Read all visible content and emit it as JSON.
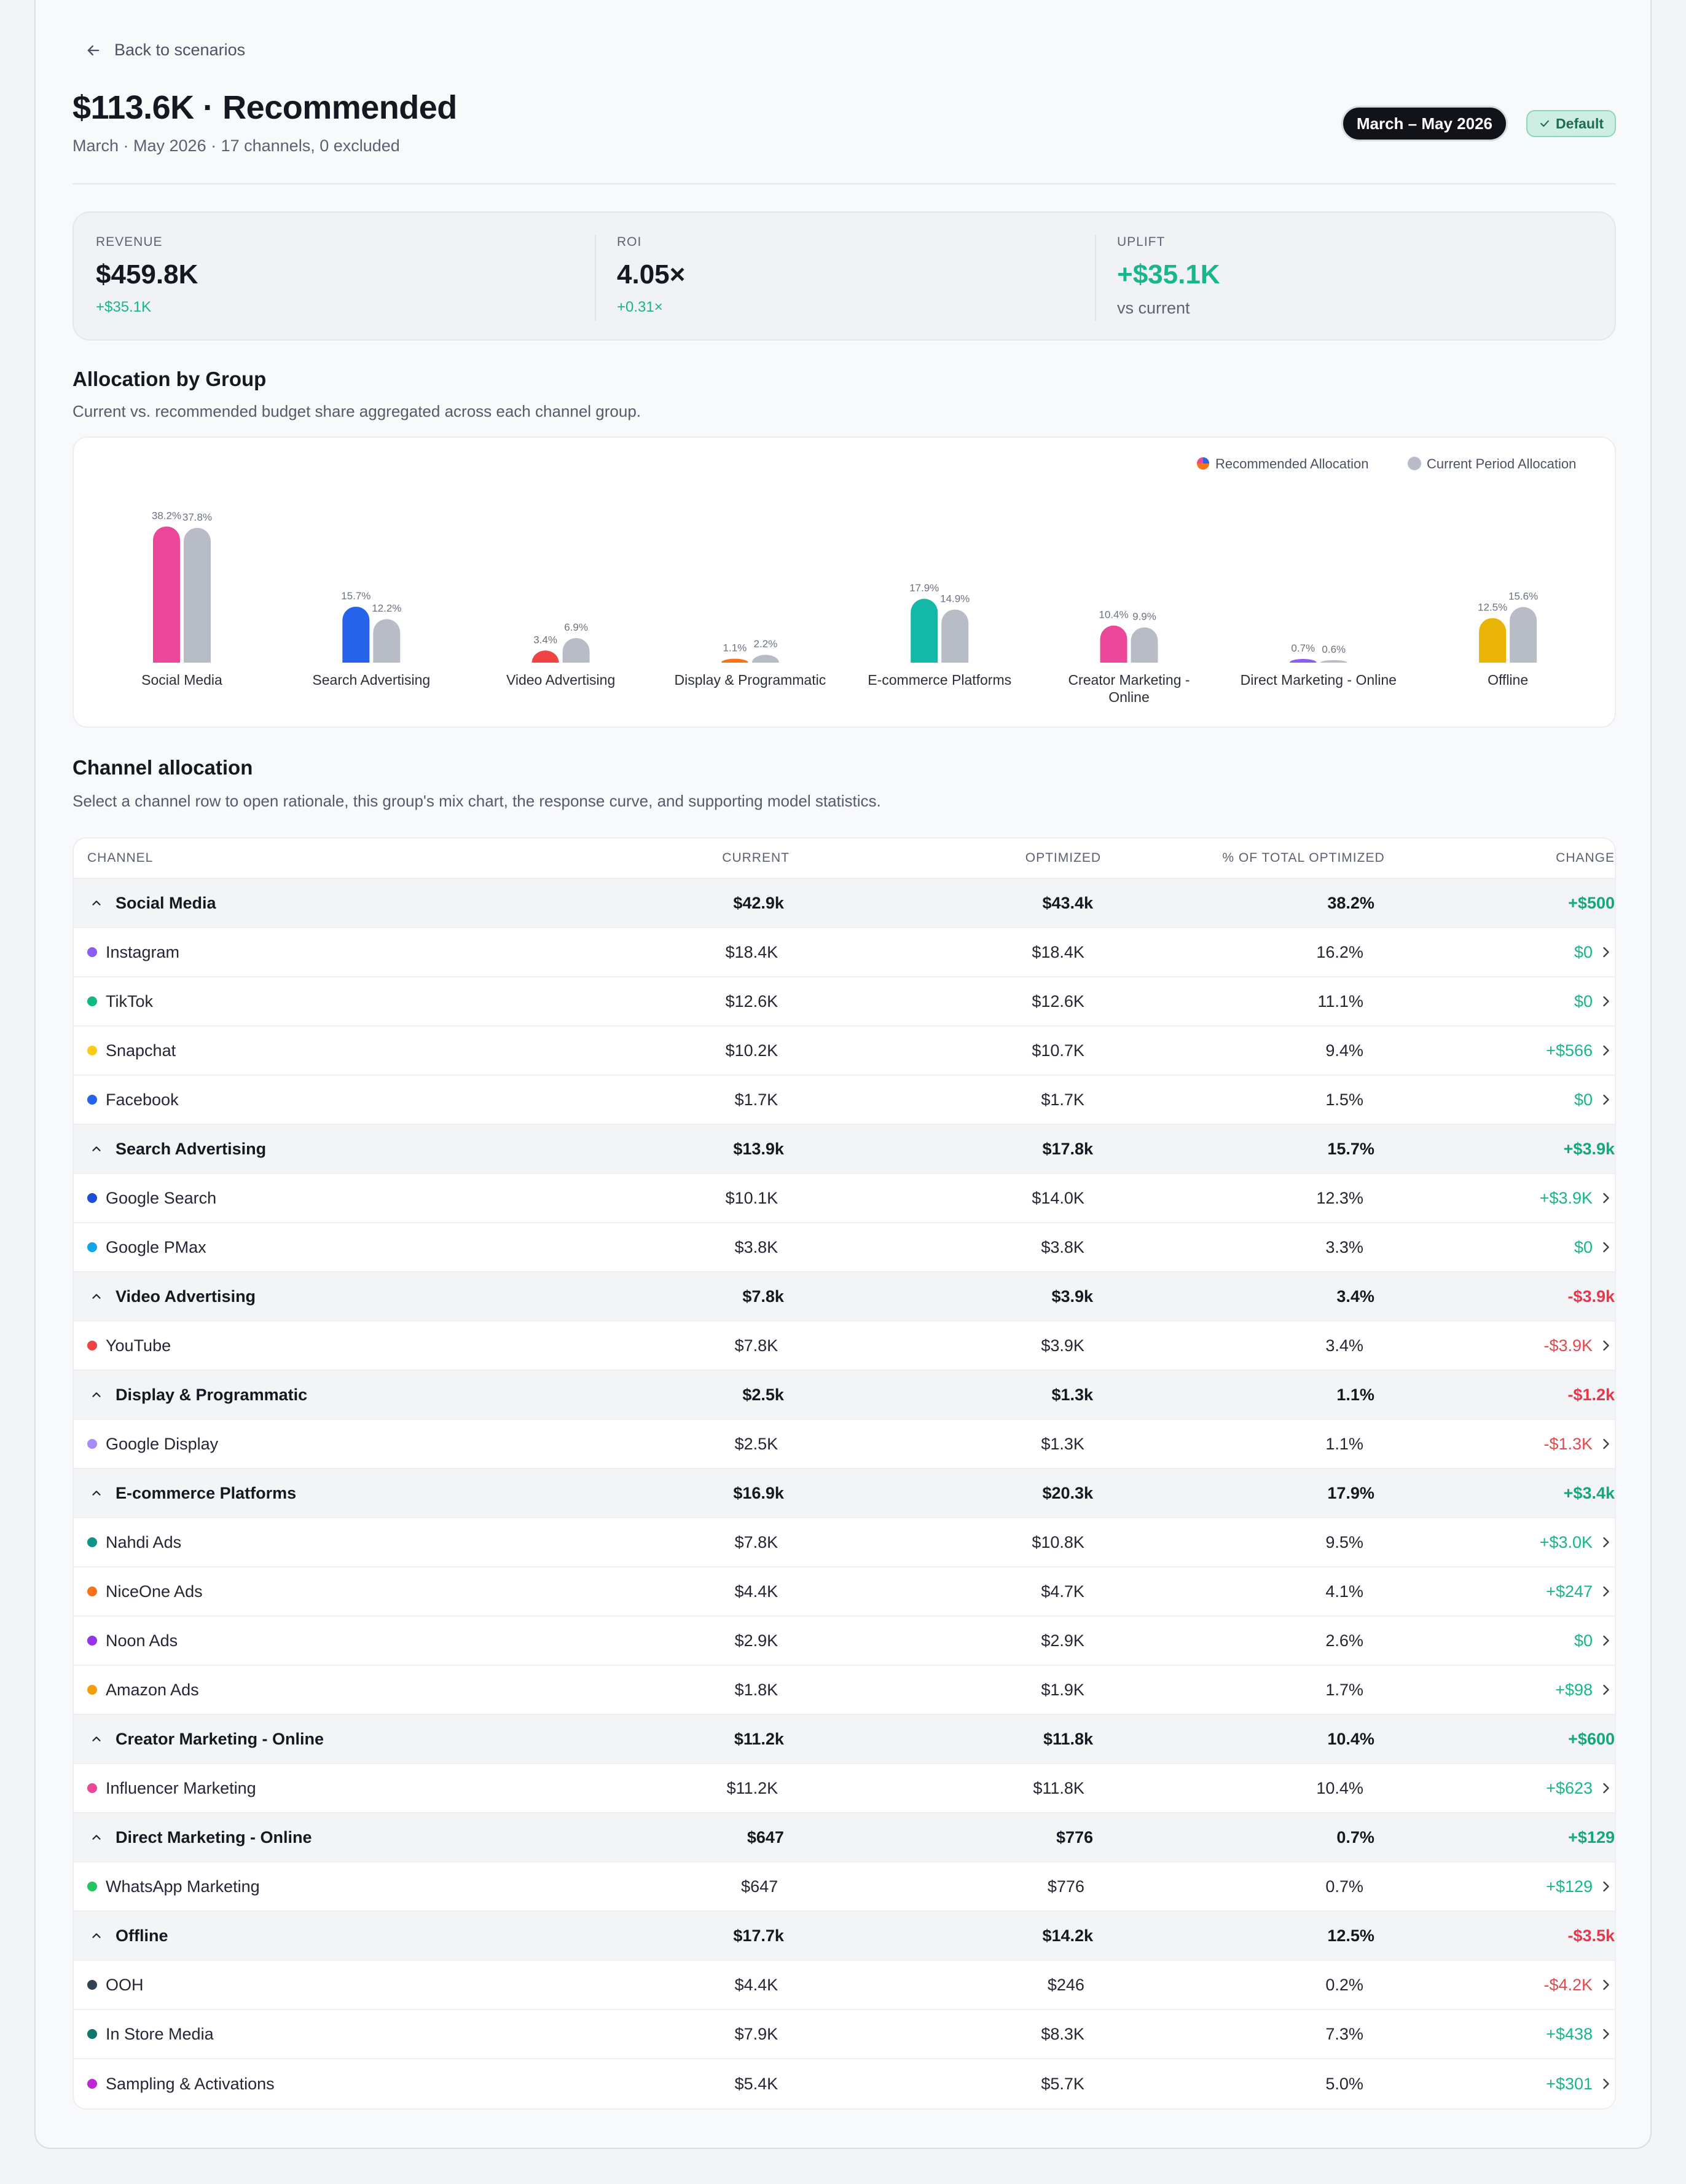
{
  "nav": {
    "back_label": "Back to scenarios"
  },
  "header": {
    "title": "$113.6K · Recommended",
    "subtitle": "March · May 2026 · 17 channels, 0 excluded",
    "period": "March – May 2026",
    "badge": "Default"
  },
  "kpis": [
    {
      "label": "REVENUE",
      "value": "$459.8K",
      "sub": "+$35.1K"
    },
    {
      "label": "ROI",
      "value": "4.05×",
      "sub": "+0.31×"
    },
    {
      "label": "UPLIFT",
      "value": "+$35.1K",
      "sub": "vs current"
    }
  ],
  "allocation": {
    "title": "Allocation by Group",
    "description": "Current vs. recommended budget share aggregated across each channel group.",
    "legend_recommended": "Recommended Allocation",
    "legend_current": "Current Period Allocation"
  },
  "chart_data": {
    "type": "bar",
    "categories": [
      "Social Media",
      "Search Advertising",
      "Video Advertising",
      "Display & Programmatic",
      "E-commerce Platforms",
      "Creator Marketing - Online",
      "Direct Marketing - Online",
      "Offline"
    ],
    "category_lines": [
      [
        "Social Media"
      ],
      [
        "Search Advertising"
      ],
      [
        "Video Advertising"
      ],
      [
        "Display & Programmatic"
      ],
      [
        "E-commerce Platforms"
      ],
      [
        "Creator Marketing -",
        "Online"
      ],
      [
        "Direct Marketing - Online"
      ],
      [
        "Offline"
      ]
    ],
    "series": [
      {
        "name": "Recommended Allocation",
        "values": [
          38.2,
          15.7,
          3.4,
          1.1,
          17.9,
          10.4,
          0.7,
          12.5
        ],
        "labels": [
          "38.2%",
          "15.7%",
          "3.4%",
          "1.1%",
          "17.9%",
          "10.4%",
          "0.7%",
          "12.5%"
        ],
        "colors": [
          "#ec4899",
          "#2563eb",
          "#ef4444",
          "#f97316",
          "#14b8a6",
          "#ec4899",
          "#8b5cf6",
          "#eab308"
        ]
      },
      {
        "name": "Current Period Allocation",
        "values": [
          37.8,
          12.2,
          6.9,
          2.2,
          14.9,
          9.9,
          0.6,
          15.6
        ],
        "labels": [
          "37.8%",
          "12.2%",
          "6.9%",
          "2.2%",
          "14.9%",
          "9.9%",
          "0.6%",
          "15.6%"
        ],
        "color": "#b8bcc6"
      }
    ],
    "ylim": [
      0,
      40
    ],
    "legend": "top-right"
  },
  "channels": {
    "title": "Channel allocation",
    "description": "Select a channel row to open rationale, this group's mix chart, the response curve, and supporting model statistics.",
    "columns": [
      "CHANNEL",
      "CURRENT",
      "OPTIMIZED",
      "% OF TOTAL OPTIMIZED",
      "CHANGE"
    ],
    "rows": [
      {
        "type": "group",
        "name": "Social Media",
        "current": "$42.9k",
        "optimized": "$43.4k",
        "pct": "38.2%",
        "change": "+$500",
        "sign": "pos"
      },
      {
        "type": "channel",
        "name": "Instagram",
        "color": "#8b5cf6",
        "current": "$18.4K",
        "optimized": "$18.4K",
        "pct": "16.2%",
        "change": "$0",
        "sign": "pos"
      },
      {
        "type": "channel",
        "name": "TikTok",
        "color": "#10b981",
        "current": "$12.6K",
        "optimized": "$12.6K",
        "pct": "11.1%",
        "change": "$0",
        "sign": "pos"
      },
      {
        "type": "channel",
        "name": "Snapchat",
        "color": "#facc15",
        "current": "$10.2K",
        "optimized": "$10.7K",
        "pct": "9.4%",
        "change": "+$566",
        "sign": "pos"
      },
      {
        "type": "channel",
        "name": "Facebook",
        "color": "#2563eb",
        "current": "$1.7K",
        "optimized": "$1.7K",
        "pct": "1.5%",
        "change": "$0",
        "sign": "pos"
      },
      {
        "type": "group",
        "name": "Search Advertising",
        "current": "$13.9k",
        "optimized": "$17.8k",
        "pct": "15.7%",
        "change": "+$3.9k",
        "sign": "pos"
      },
      {
        "type": "channel",
        "name": "Google Search",
        "color": "#1d4ed8",
        "current": "$10.1K",
        "optimized": "$14.0K",
        "pct": "12.3%",
        "change": "+$3.9K",
        "sign": "pos"
      },
      {
        "type": "channel",
        "name": "Google PMax",
        "color": "#0ea5e9",
        "current": "$3.8K",
        "optimized": "$3.8K",
        "pct": "3.3%",
        "change": "$0",
        "sign": "pos"
      },
      {
        "type": "group",
        "name": "Video Advertising",
        "current": "$7.8k",
        "optimized": "$3.9k",
        "pct": "3.4%",
        "change": "-$3.9k",
        "sign": "neg"
      },
      {
        "type": "channel",
        "name": "YouTube",
        "color": "#ef4444",
        "current": "$7.8K",
        "optimized": "$3.9K",
        "pct": "3.4%",
        "change": "-$3.9K",
        "sign": "neg"
      },
      {
        "type": "group",
        "name": "Display & Programmatic",
        "current": "$2.5k",
        "optimized": "$1.3k",
        "pct": "1.1%",
        "change": "-$1.2k",
        "sign": "neg"
      },
      {
        "type": "channel",
        "name": "Google Display",
        "color": "#a78bfa",
        "current": "$2.5K",
        "optimized": "$1.3K",
        "pct": "1.1%",
        "change": "-$1.3K",
        "sign": "neg"
      },
      {
        "type": "group",
        "name": "E-commerce Platforms",
        "current": "$16.9k",
        "optimized": "$20.3k",
        "pct": "17.9%",
        "change": "+$3.4k",
        "sign": "pos"
      },
      {
        "type": "channel",
        "name": "Nahdi Ads",
        "color": "#0d9488",
        "current": "$7.8K",
        "optimized": "$10.8K",
        "pct": "9.5%",
        "change": "+$3.0K",
        "sign": "pos"
      },
      {
        "type": "channel",
        "name": "NiceOne Ads",
        "color": "#f97316",
        "current": "$4.4K",
        "optimized": "$4.7K",
        "pct": "4.1%",
        "change": "+$247",
        "sign": "pos"
      },
      {
        "type": "channel",
        "name": "Noon Ads",
        "color": "#9333ea",
        "current": "$2.9K",
        "optimized": "$2.9K",
        "pct": "2.6%",
        "change": "$0",
        "sign": "pos"
      },
      {
        "type": "channel",
        "name": "Amazon Ads",
        "color": "#f59e0b",
        "current": "$1.8K",
        "optimized": "$1.9K",
        "pct": "1.7%",
        "change": "+$98",
        "sign": "pos"
      },
      {
        "type": "group",
        "name": "Creator Marketing - Online",
        "current": "$11.2k",
        "optimized": "$11.8k",
        "pct": "10.4%",
        "change": "+$600",
        "sign": "pos"
      },
      {
        "type": "channel",
        "name": "Influencer Marketing",
        "color": "#ec4899",
        "current": "$11.2K",
        "optimized": "$11.8K",
        "pct": "10.4%",
        "change": "+$623",
        "sign": "pos"
      },
      {
        "type": "group",
        "name": "Direct Marketing - Online",
        "current": "$647",
        "optimized": "$776",
        "pct": "0.7%",
        "change": "+$129",
        "sign": "pos"
      },
      {
        "type": "channel",
        "name": "WhatsApp Marketing",
        "color": "#22c55e",
        "current": "$647",
        "optimized": "$776",
        "pct": "0.7%",
        "change": "+$129",
        "sign": "pos"
      },
      {
        "type": "group",
        "name": "Offline",
        "current": "$17.7k",
        "optimized": "$14.2k",
        "pct": "12.5%",
        "change": "-$3.5k",
        "sign": "neg"
      },
      {
        "type": "channel",
        "name": "OOH",
        "color": "#334155",
        "current": "$4.4K",
        "optimized": "$246",
        "pct": "0.2%",
        "change": "-$4.2K",
        "sign": "neg"
      },
      {
        "type": "channel",
        "name": "In Store Media",
        "color": "#0f766e",
        "current": "$7.9K",
        "optimized": "$8.3K",
        "pct": "7.3%",
        "change": "+$438",
        "sign": "pos"
      },
      {
        "type": "channel",
        "name": "Sampling & Activations",
        "color": "#c026d3",
        "current": "$5.4K",
        "optimized": "$5.7K",
        "pct": "5.0%",
        "change": "+$301",
        "sign": "pos"
      }
    ]
  }
}
